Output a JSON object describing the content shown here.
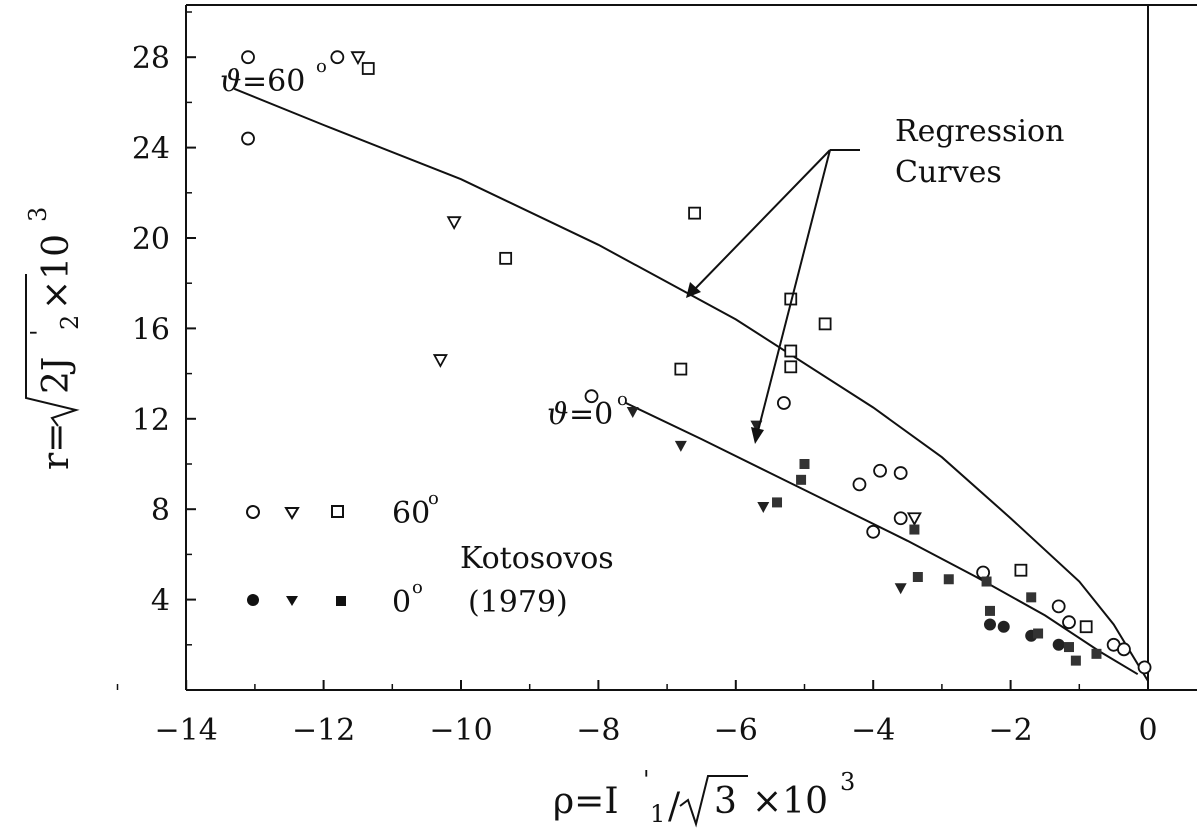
{
  "chart_data": {
    "type": "scatter",
    "x_label_parts": {
      "lhs": "ρ=I",
      "prime": "'",
      "sub": "1",
      "slash": "/",
      "sqrt_arg": "3",
      "mult": "×10",
      "exp": "3"
    },
    "y_label_parts": {
      "lhs": "r=",
      "sqrt_arg": "2J",
      "prime": "'",
      "sub": "2",
      "mult": "×10",
      "exp": "3"
    },
    "xlim": [
      -16,
      0.4
    ],
    "ylim": [
      0,
      30
    ],
    "x_ticks": [
      -14,
      -12,
      -10,
      -8,
      -6,
      -4,
      -2,
      0
    ],
    "y_ticks": [
      4,
      8,
      12,
      16,
      20,
      24,
      28
    ],
    "x_tick_labels": [
      "−14",
      "−12",
      "−10",
      "−8",
      "−6",
      "−4",
      "−2",
      "0"
    ],
    "y_tick_labels": [
      "4",
      "8",
      "12",
      "16",
      "20",
      "24",
      "28"
    ],
    "grid": false,
    "series": [
      {
        "marker": "open-circle",
        "group": "60",
        "points": [
          [
            -13.1,
            28
          ],
          [
            -11.8,
            28
          ],
          [
            -13.1,
            24.4
          ],
          [
            -8.1,
            13
          ],
          [
            -5.3,
            12.7
          ],
          [
            -4.2,
            9.1
          ],
          [
            -3.9,
            9.7
          ],
          [
            -3.6,
            9.6
          ],
          [
            -3.6,
            7.6
          ],
          [
            -4,
            7
          ],
          [
            -2.4,
            5.2
          ],
          [
            -1.3,
            3.7
          ],
          [
            -1.15,
            3
          ],
          [
            -0.5,
            2
          ],
          [
            -0.35,
            1.8
          ],
          [
            -0.05,
            1
          ]
        ]
      },
      {
        "marker": "open-triangle",
        "group": "60",
        "points": [
          [
            -11.5,
            28
          ],
          [
            -10.1,
            20.7
          ],
          [
            -10.3,
            14.6
          ],
          [
            -3.4,
            7.6
          ]
        ]
      },
      {
        "marker": "open-square",
        "group": "60",
        "points": [
          [
            -11.35,
            27.5
          ],
          [
            -9.35,
            19.1
          ],
          [
            -6.6,
            21.1
          ],
          [
            -5.2,
            17.3
          ],
          [
            -4.7,
            16.2
          ],
          [
            -5.2,
            15
          ],
          [
            -5.2,
            14.3
          ],
          [
            -6.8,
            14.2
          ],
          [
            -1.85,
            5.3
          ],
          [
            -0.9,
            2.8
          ]
        ]
      },
      {
        "marker": "filled-circle",
        "group": "0",
        "points": [
          [
            -2.3,
            2.9
          ],
          [
            -2.1,
            2.8
          ],
          [
            -1.7,
            2.4
          ],
          [
            -1.3,
            2
          ]
        ]
      },
      {
        "marker": "filled-triangle",
        "group": "0",
        "points": [
          [
            -7.5,
            12.3
          ],
          [
            -6.8,
            10.8
          ],
          [
            -5.7,
            11.7
          ],
          [
            -5.6,
            8.1
          ],
          [
            -3.6,
            4.5
          ]
        ]
      },
      {
        "marker": "filled-square",
        "group": "0",
        "points": [
          [
            -5,
            10
          ],
          [
            -5.05,
            9.3
          ],
          [
            -5.4,
            8.3
          ],
          [
            -3.4,
            7.1
          ],
          [
            -3.35,
            5
          ],
          [
            -2.9,
            4.9
          ],
          [
            -2.35,
            4.8
          ],
          [
            -2.3,
            3.5
          ],
          [
            -1.7,
            4.1
          ],
          [
            -1.6,
            2.5
          ],
          [
            -1.15,
            1.9
          ],
          [
            -1.05,
            1.3
          ],
          [
            -0.75,
            1.6
          ]
        ]
      }
    ],
    "curves": [
      {
        "label": "ϑ=60°",
        "points": [
          [
            -13.3,
            26.6
          ],
          [
            -12,
            25
          ],
          [
            -10,
            22.6
          ],
          [
            -8,
            19.7
          ],
          [
            -6,
            16.4
          ],
          [
            -4,
            12.5
          ],
          [
            -3,
            10.3
          ],
          [
            -2,
            7.6
          ],
          [
            -1,
            4.8
          ],
          [
            -0.5,
            2.9
          ],
          [
            0,
            0.4
          ]
        ]
      },
      {
        "label": "ϑ=0°",
        "points": [
          [
            -7.6,
            12.7
          ],
          [
            -6.5,
            11.1
          ],
          [
            -5.5,
            9.6
          ],
          [
            -4.5,
            8.1
          ],
          [
            -3.5,
            6.6
          ],
          [
            -2.5,
            5
          ],
          [
            -1.5,
            3.3
          ],
          [
            -0.7,
            1.7
          ],
          [
            -0.15,
            0.7
          ]
        ]
      }
    ],
    "annotations": {
      "curve_60_label": {
        "theta": "ϑ",
        "text": "=60",
        "deg": "o"
      },
      "curve_0_label": {
        "theta": "ϑ",
        "text": "=0",
        "deg": "o"
      },
      "regression_line1": "Regression",
      "regression_line2": "Curves"
    },
    "legend": {
      "row1": {
        "text": "60",
        "deg": "o"
      },
      "row2": {
        "text": "0",
        "deg": "o"
      },
      "source_line1": "Kotosovos",
      "source_line2": "(1979)"
    }
  }
}
